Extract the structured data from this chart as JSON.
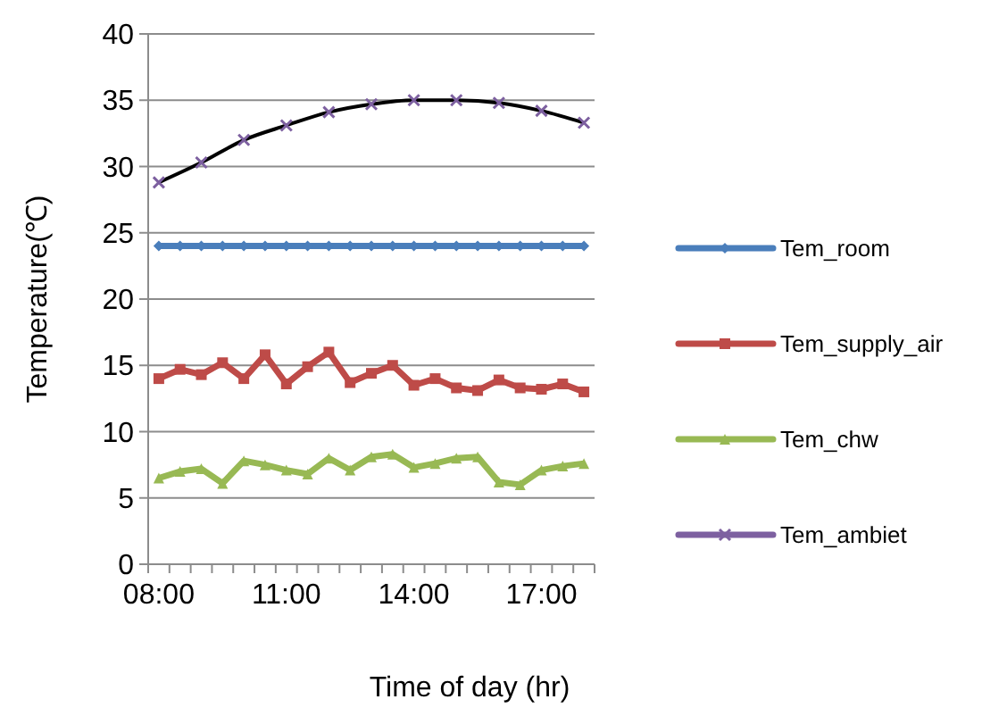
{
  "chart_data": {
    "type": "line",
    "xlabel": "Time of day (hr)",
    "ylabel": "Temperature(℃)",
    "categories": [
      "08:00",
      null,
      null,
      null,
      null,
      null,
      "11:00",
      null,
      null,
      null,
      null,
      null,
      "14:00",
      null,
      null,
      null,
      null,
      null,
      "17:00",
      null,
      null
    ],
    "ylim": [
      0,
      40
    ],
    "yticks": [
      0,
      5,
      10,
      15,
      20,
      25,
      30,
      35,
      40
    ],
    "grid": "y",
    "legend": "right",
    "line_style": "solid",
    "series": [
      {
        "name": "Tem_room",
        "color": "#4a7ebb",
        "marker": "diamond",
        "values": [
          24,
          24,
          24,
          24,
          24,
          24,
          24,
          24,
          24,
          24,
          24,
          24,
          24,
          24,
          24,
          24,
          24,
          24,
          24,
          24,
          24
        ]
      },
      {
        "name": "Tem_supply_air",
        "color": "#be4b48",
        "marker": "square",
        "values": [
          14.0,
          14.7,
          14.3,
          15.2,
          14.0,
          15.8,
          13.6,
          14.9,
          16.0,
          13.7,
          14.4,
          15.0,
          13.5,
          14.0,
          13.3,
          13.1,
          13.9,
          13.3,
          13.2,
          13.6,
          13.0
        ]
      },
      {
        "name": "Tem_chw",
        "color": "#98b954",
        "marker": "triangle",
        "values": [
          6.5,
          7.0,
          7.2,
          6.1,
          7.8,
          7.5,
          7.1,
          6.8,
          8.0,
          7.1,
          8.1,
          8.3,
          7.3,
          7.6,
          8.0,
          8.1,
          6.2,
          6.0,
          7.1,
          7.4,
          7.6
        ]
      },
      {
        "name": "Tem_ambiet",
        "type": "scatter",
        "color": "#7d60a0",
        "marker": "cross",
        "values": [
          28.8,
          null,
          30.3,
          null,
          32.0,
          null,
          33.1,
          null,
          34.1,
          null,
          34.7,
          null,
          35.0,
          null,
          35.0,
          null,
          34.8,
          null,
          34.2,
          null,
          33.3
        ]
      },
      {
        "type": "line",
        "color": "#000000",
        "marker": "none",
        "values": [
          28.8,
          null,
          30.3,
          null,
          32.0,
          null,
          33.1,
          null,
          34.1,
          null,
          34.7,
          null,
          35.0,
          null,
          35.0,
          null,
          34.8,
          null,
          34.2,
          null,
          33.3
        ]
      }
    ]
  }
}
